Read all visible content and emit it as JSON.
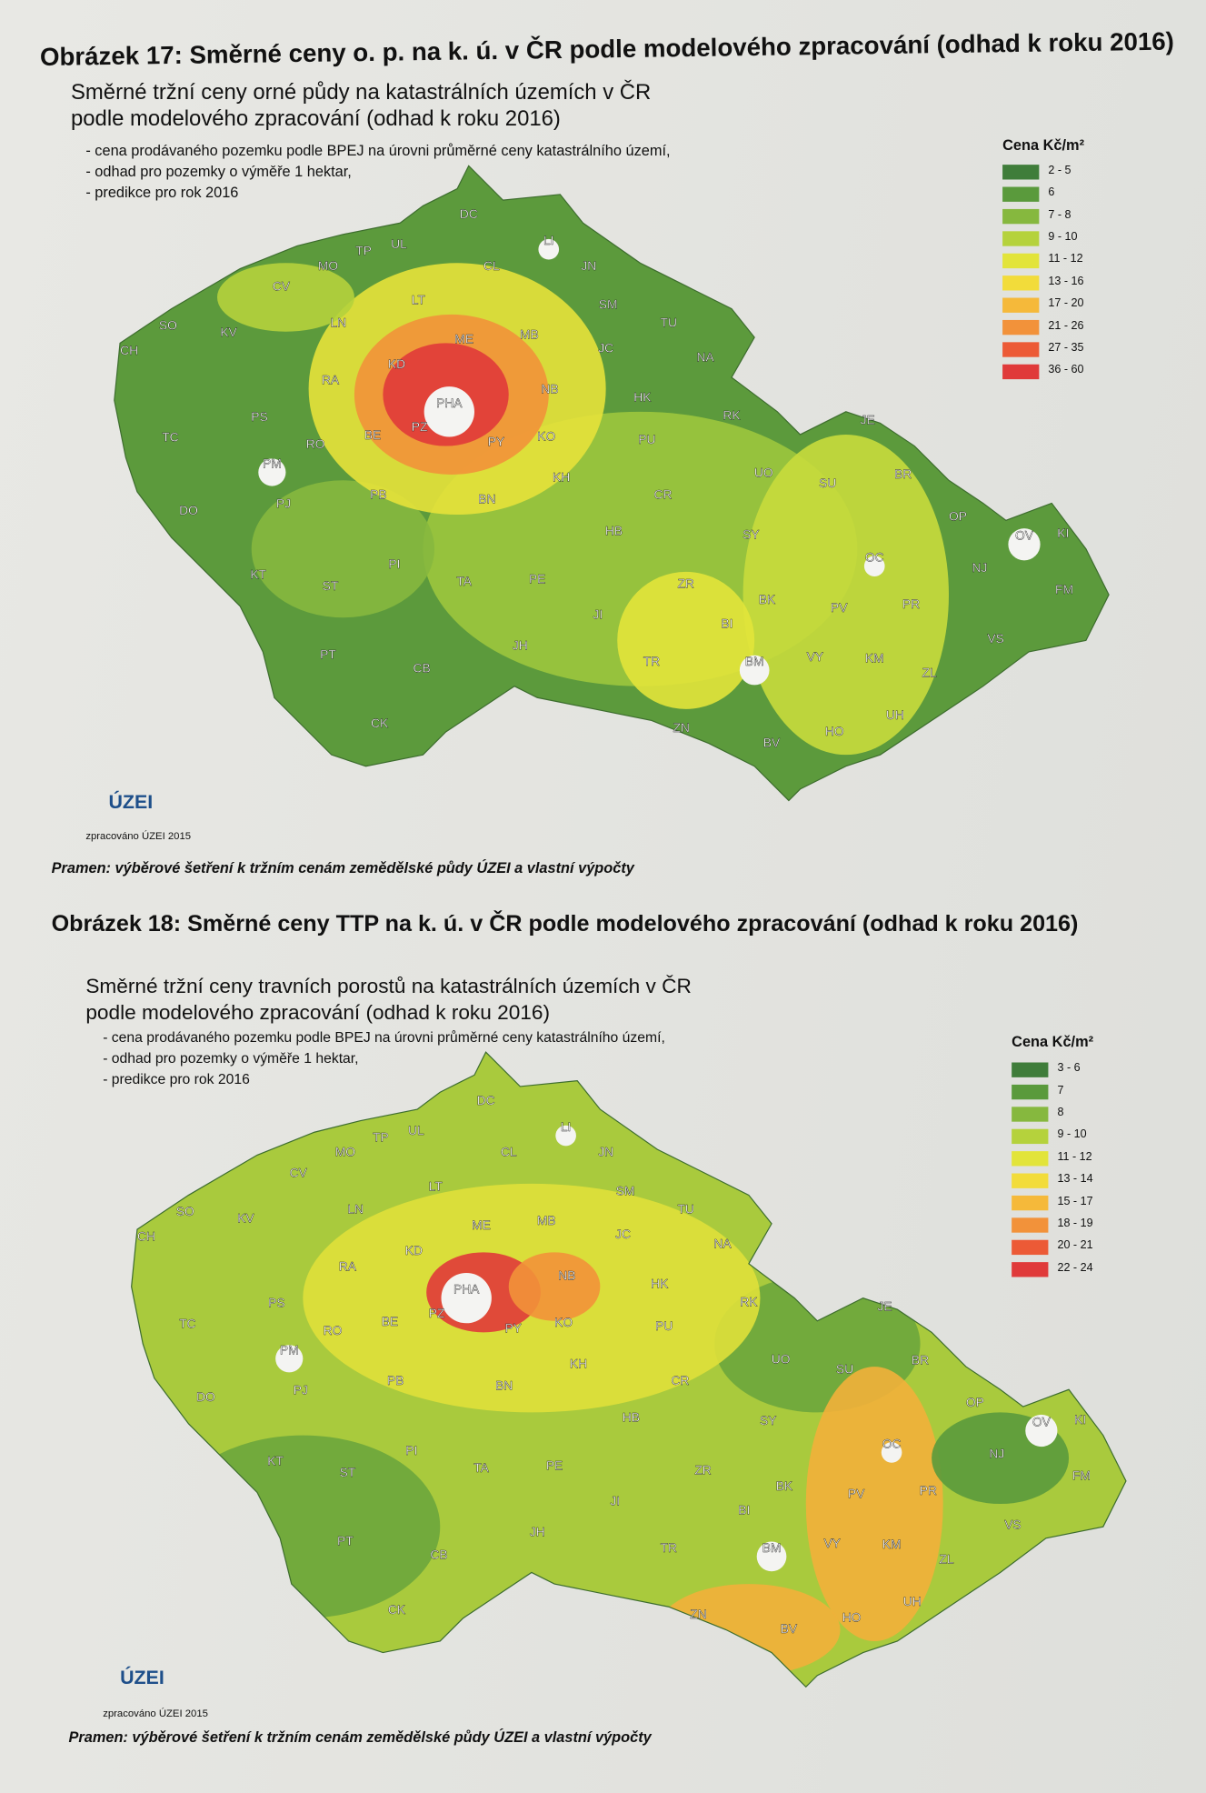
{
  "figures": [
    {
      "caption": "Obrázek 17: Směrné ceny o. p. na k. ú. v ČR podle modelového zpracování (odhad k roku 2016)",
      "map": {
        "title_lines": [
          "Směrné tržní ceny orné půdy na katastrálních územích v ČR",
          "podle modelového zpracování (odhad k roku 2016)"
        ],
        "notes": [
          "- cena prodávaného pozemku podle BPEJ na úrovni průměrné ceny katastrálního území,",
          "- odhad pro pozemky o výměře 1 hektar,",
          "- predikce pro rok 2016"
        ],
        "legend": {
          "title": "Cena Kč/m²",
          "items": [
            {
              "label": "2 - 5",
              "color": "#3f7d3a"
            },
            {
              "label": "6",
              "color": "#5a9a3c"
            },
            {
              "label": "7 - 8",
              "color": "#86b83e"
            },
            {
              "label": "9 - 10",
              "color": "#b5d23c"
            },
            {
              "label": "11 - 12",
              "color": "#e2e43a"
            },
            {
              "label": "13 - 16",
              "color": "#f2dc3a"
            },
            {
              "label": "17 - 20",
              "color": "#f5b93a"
            },
            {
              "label": "21 - 26",
              "color": "#f2923a"
            },
            {
              "label": "27 - 35",
              "color": "#ec5a36"
            },
            {
              "label": "36 - 60",
              "color": "#e03a3a"
            }
          ]
        },
        "labels": [
          "DC",
          "UL",
          "TP",
          "MO",
          "CL",
          "LI",
          "JN",
          "CV",
          "LT",
          "SM",
          "TU",
          "SO",
          "KV",
          "LN",
          "ME",
          "MB",
          "JC",
          "CH",
          "NA",
          "KD",
          "RA",
          "NB",
          "HK",
          "PHA",
          "PS",
          "PZ",
          "PY",
          "KO",
          "RK",
          "JE",
          "BE",
          "TC",
          "RO",
          "PU",
          "PM",
          "UO",
          "SU",
          "BR",
          "KH",
          "PB",
          "BN",
          "CR",
          "PJ",
          "DO",
          "OP",
          "OV",
          "KI",
          "HB",
          "SY",
          "OC",
          "NJ",
          "KT",
          "PI",
          "TA",
          "PE",
          "ZR",
          "ST",
          "FM",
          "BK",
          "PV",
          "PR",
          "JI",
          "BI",
          "JH",
          "VS",
          "TR",
          "BM",
          "VY",
          "KM",
          "ZL",
          "PT",
          "CB",
          "UH",
          "CK",
          "ZN",
          "HO",
          "BV"
        ]
      },
      "logo": "ÚZEI",
      "credit": "zpracováno ÚZEI 2015",
      "source": "Pramen: výběrové šetření k tržním cenám zemědělské půdy ÚZEI a vlastní výpočty"
    },
    {
      "caption": "Obrázek 18: Směrné ceny TTP na k. ú. v ČR podle modelového zpracování (odhad k roku 2016)",
      "map": {
        "title_lines": [
          "Směrné tržní ceny travních porostů na katastrálních územích v ČR",
          "podle modelového zpracování (odhad k roku 2016)"
        ],
        "notes": [
          "- cena prodávaného pozemku podle BPEJ na úrovni průměrné ceny katastrálního území,",
          "- odhad pro pozemky o výměře 1 hektar,",
          "- predikce pro rok 2016"
        ],
        "legend": {
          "title": "Cena Kč/m²",
          "items": [
            {
              "label": "3 - 6",
              "color": "#3f7d3a"
            },
            {
              "label": "7",
              "color": "#5a9a3c"
            },
            {
              "label": "8",
              "color": "#86b83e"
            },
            {
              "label": "9 - 10",
              "color": "#b5d23c"
            },
            {
              "label": "11 - 12",
              "color": "#e2e43a"
            },
            {
              "label": "13 - 14",
              "color": "#f2dc3a"
            },
            {
              "label": "15 - 17",
              "color": "#f5b93a"
            },
            {
              "label": "18 - 19",
              "color": "#f2923a"
            },
            {
              "label": "20 - 21",
              "color": "#ec5a36"
            },
            {
              "label": "22 - 24",
              "color": "#e03a3a"
            }
          ]
        },
        "labels": [
          "DC",
          "UL",
          "TP",
          "MO",
          "CL",
          "LI",
          "JN",
          "CV",
          "LT",
          "SM",
          "TU",
          "SO",
          "KV",
          "LN",
          "ME",
          "MB",
          "JC",
          "CH",
          "NA",
          "KD",
          "RA",
          "NB",
          "HK",
          "PHA",
          "PS",
          "PZ",
          "PY",
          "KO",
          "RK",
          "JE",
          "BE",
          "TC",
          "RO",
          "PU",
          "PM",
          "UO",
          "SU",
          "BR",
          "KH",
          "PB",
          "BN",
          "CR",
          "PJ",
          "DO",
          "OP",
          "OV",
          "KI",
          "HB",
          "SY",
          "OC",
          "NJ",
          "KT",
          "PI",
          "TA",
          "PE",
          "ZR",
          "ST",
          "FM",
          "BK",
          "PV",
          "PR",
          "JI",
          "BI",
          "JH",
          "VS",
          "TR",
          "BM",
          "VY",
          "KM",
          "ZL",
          "PT",
          "CB",
          "UH",
          "CK",
          "ZN",
          "HO",
          "BV"
        ]
      },
      "logo": "ÚZEI",
      "credit": "zpracováno ÚZEI 2015",
      "source": "Pramen: výběrové šetření k tržním cenám zemědělské půdy ÚZEI a vlastní výpočty"
    }
  ]
}
